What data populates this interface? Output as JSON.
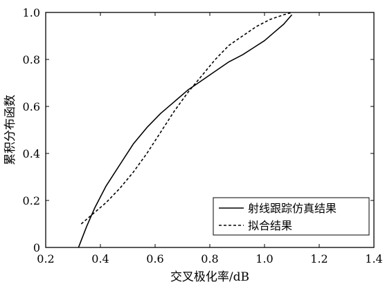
{
  "chart_data": {
    "type": "line",
    "title": "",
    "xlabel": "交叉极化率/dB",
    "ylabel": "累积分布函数",
    "xlim": [
      0.2,
      1.4
    ],
    "ylim": [
      0,
      1.0
    ],
    "xticks": [
      0.2,
      0.4,
      0.6,
      0.8,
      1.0,
      1.2,
      1.4
    ],
    "yticks": [
      0,
      0.2,
      0.4,
      0.6,
      0.8,
      1.0
    ],
    "xtick_labels": [
      "0.2",
      "0.4",
      "0.6",
      "0.8",
      "1.0",
      "1.2",
      "1.4"
    ],
    "ytick_labels": [
      "0",
      "0.2",
      "0.4",
      "0.6",
      "0.8",
      "1.0"
    ],
    "grid": false,
    "legend_position": "bottom-right",
    "series": [
      {
        "name": "射线跟踪仿真结果",
        "style": "solid",
        "color": "#000000",
        "x": [
          0.32,
          0.33,
          0.35,
          0.38,
          0.42,
          0.47,
          0.52,
          0.57,
          0.62,
          0.67,
          0.72,
          0.77,
          0.82,
          0.87,
          0.92,
          0.96,
          1.0,
          1.04,
          1.07,
          1.1
        ],
        "y": [
          0.0,
          0.03,
          0.09,
          0.17,
          0.26,
          0.35,
          0.44,
          0.51,
          0.57,
          0.62,
          0.67,
          0.71,
          0.75,
          0.79,
          0.82,
          0.85,
          0.88,
          0.92,
          0.95,
          0.99
        ]
      },
      {
        "name": "拟合结果",
        "style": "dashed",
        "color": "#000000",
        "x": [
          0.33,
          0.37,
          0.42,
          0.47,
          0.52,
          0.57,
          0.62,
          0.67,
          0.72,
          0.77,
          0.82,
          0.87,
          0.92,
          0.97,
          1.02,
          1.07,
          1.1
        ],
        "y": [
          0.1,
          0.14,
          0.19,
          0.25,
          0.32,
          0.4,
          0.49,
          0.58,
          0.66,
          0.73,
          0.8,
          0.86,
          0.9,
          0.94,
          0.97,
          0.99,
          1.0
        ]
      }
    ]
  }
}
